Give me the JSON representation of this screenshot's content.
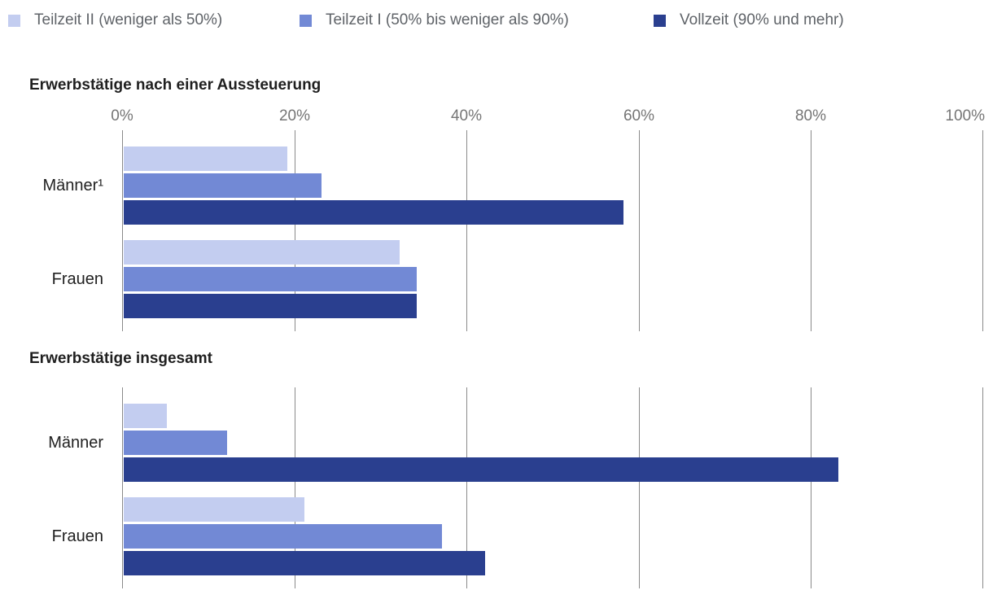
{
  "legend": {
    "items": [
      {
        "label": "Teilzeit II (weniger als 50%)",
        "color": "#c3cdf0"
      },
      {
        "label": "Teilzeit I (50% bis weniger als 90%)",
        "color": "#7289d5"
      },
      {
        "label": "Vollzeit (90% und mehr)",
        "color": "#2a3f8f"
      }
    ]
  },
  "chart_data": [
    {
      "type": "bar",
      "orientation": "horizontal",
      "title": "Erwerbstätige nach einer Aussteuerung",
      "categories": [
        "Männer¹",
        "Frauen"
      ],
      "series": [
        {
          "name": "Teilzeit II (weniger als 50%)",
          "color": "#c3cdf0",
          "values": [
            19,
            32
          ]
        },
        {
          "name": "Teilzeit I (50% bis weniger als 90%)",
          "color": "#7289d5",
          "values": [
            23,
            34
          ]
        },
        {
          "name": "Vollzeit (90% und mehr)",
          "color": "#2a3f8f",
          "values": [
            58,
            34
          ]
        }
      ],
      "x_axis": {
        "min": 0,
        "max": 100,
        "ticks": [
          "0%",
          "20%",
          "40%",
          "60%",
          "80%",
          "100%"
        ],
        "show_tick_labels": true
      },
      "unit": "%",
      "grid": true,
      "legend_position": "top"
    },
    {
      "type": "bar",
      "orientation": "horizontal",
      "title": "Erwerbstätige insgesamt",
      "categories": [
        "Männer",
        "Frauen"
      ],
      "series": [
        {
          "name": "Teilzeit II (weniger als 50%)",
          "color": "#c3cdf0",
          "values": [
            5,
            21
          ]
        },
        {
          "name": "Teilzeit I (50% bis weniger als 90%)",
          "color": "#7289d5",
          "values": [
            12,
            37
          ]
        },
        {
          "name": "Vollzeit (90% und mehr)",
          "color": "#2a3f8f",
          "values": [
            83,
            42
          ]
        }
      ],
      "x_axis": {
        "min": 0,
        "max": 100,
        "ticks": [
          "0%",
          "20%",
          "40%",
          "60%",
          "80%",
          "100%"
        ],
        "show_tick_labels": false
      },
      "unit": "%",
      "grid": true,
      "legend_position": "top"
    }
  ],
  "colors": {
    "background": "#ffffff",
    "gridline": "#8a8a8a",
    "axis_text": "#757575",
    "title_text": "#1f1f1f",
    "category_text": "#212121",
    "legend_text": "#5f6368"
  }
}
